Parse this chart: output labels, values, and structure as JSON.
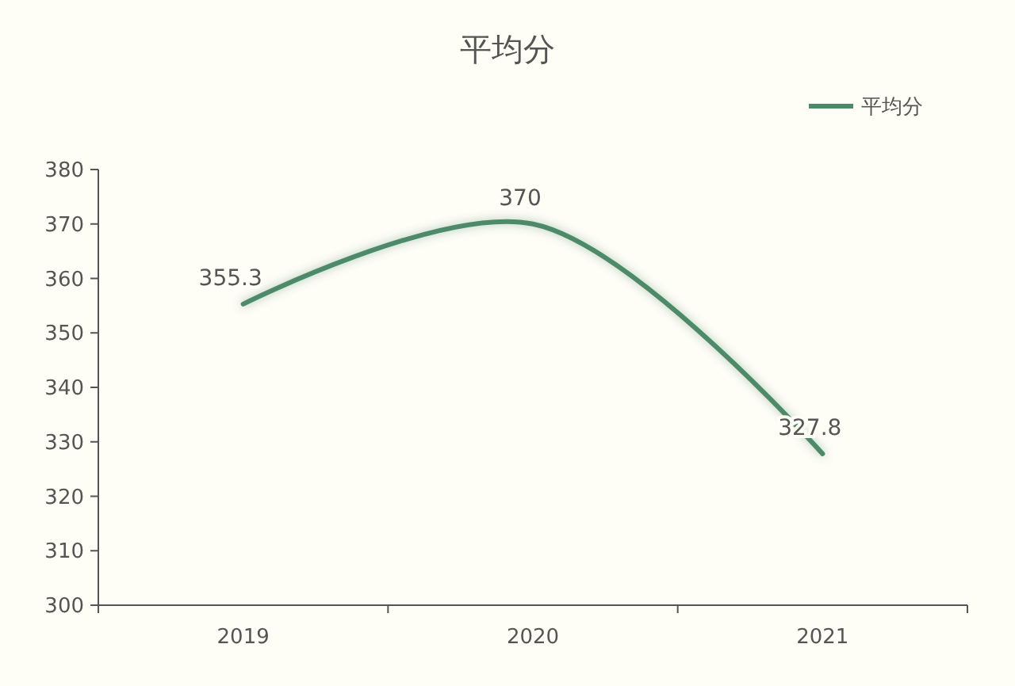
{
  "chart_data": {
    "type": "line",
    "title": "平均分",
    "categories": [
      "2019",
      "2020",
      "2021"
    ],
    "series": [
      {
        "name": "平均分",
        "color": "#4e8a6a",
        "values": [
          355.3,
          370,
          327.8
        ]
      }
    ],
    "ylim": [
      300,
      380
    ],
    "yticks": [
      300,
      310,
      320,
      330,
      340,
      350,
      360,
      370,
      380
    ],
    "grid": false,
    "legend": "top right",
    "data_labels": true,
    "marker": "none",
    "line_style": "solid"
  }
}
